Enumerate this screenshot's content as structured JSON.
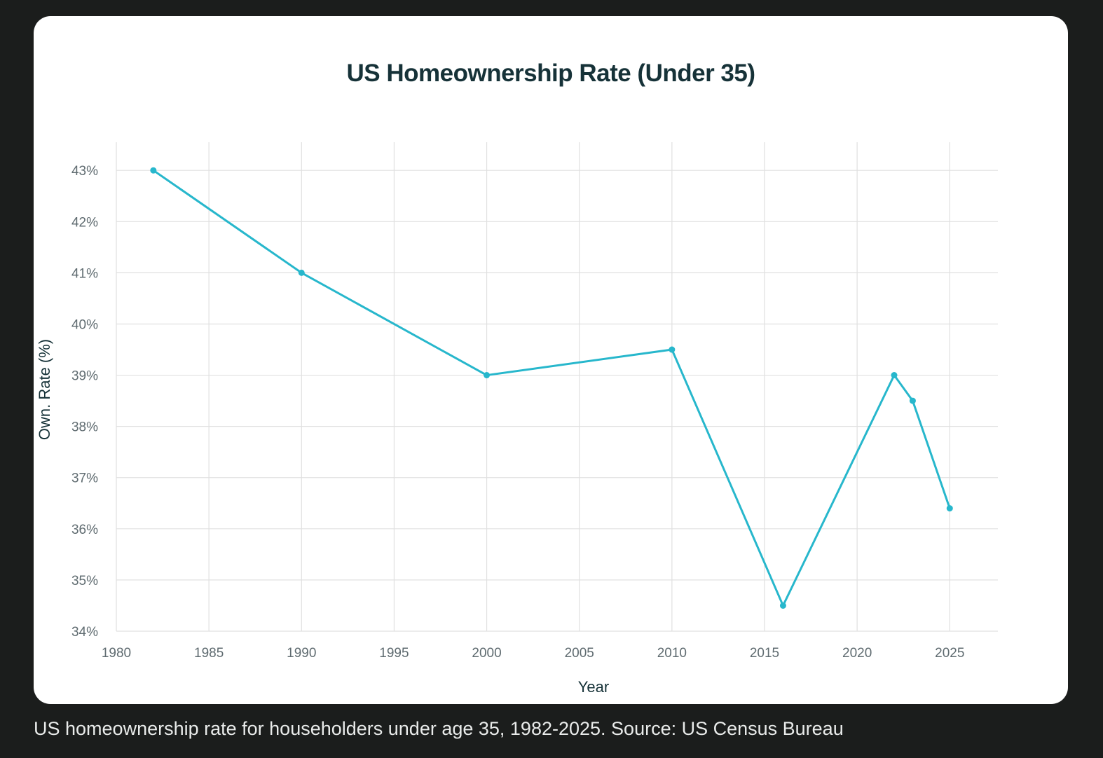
{
  "chart_data": {
    "type": "line",
    "title": "US Homeownership Rate (Under 35)",
    "xlabel": "Year",
    "ylabel": "Own. Rate (%)",
    "x": [
      1982,
      1990,
      2000,
      2010,
      2016,
      2022,
      2023,
      2025
    ],
    "series": [
      {
        "name": "Homeownership rate, under 35",
        "values": [
          43,
          41,
          39,
          39.5,
          34.5,
          39,
          38.5,
          36.4
        ]
      }
    ],
    "xlim": [
      1980,
      2027.6
    ],
    "ylim": [
      34,
      43.55
    ],
    "xticks": [
      1980,
      1985,
      1990,
      1995,
      2000,
      2005,
      2010,
      2015,
      2020,
      2025
    ],
    "xtick_labels": [
      "1980",
      "1985",
      "1990",
      "1995",
      "2000",
      "2005",
      "2010",
      "2015",
      "2020",
      "2025"
    ],
    "yticks": [
      34,
      35,
      36,
      37,
      38,
      39,
      40,
      41,
      42,
      43
    ],
    "ytick_labels": [
      "34%",
      "35%",
      "36%",
      "37%",
      "38%",
      "39%",
      "40%",
      "41%",
      "42%",
      "43%"
    ],
    "grid": true,
    "line_color": "#27b7cc",
    "grid_color": "#e0e0e0",
    "text_color": "#5f6b70",
    "title_color": "#163238"
  },
  "caption": "US homeownership rate for householders under age 35, 1982-2025. Source: US Census Bureau"
}
